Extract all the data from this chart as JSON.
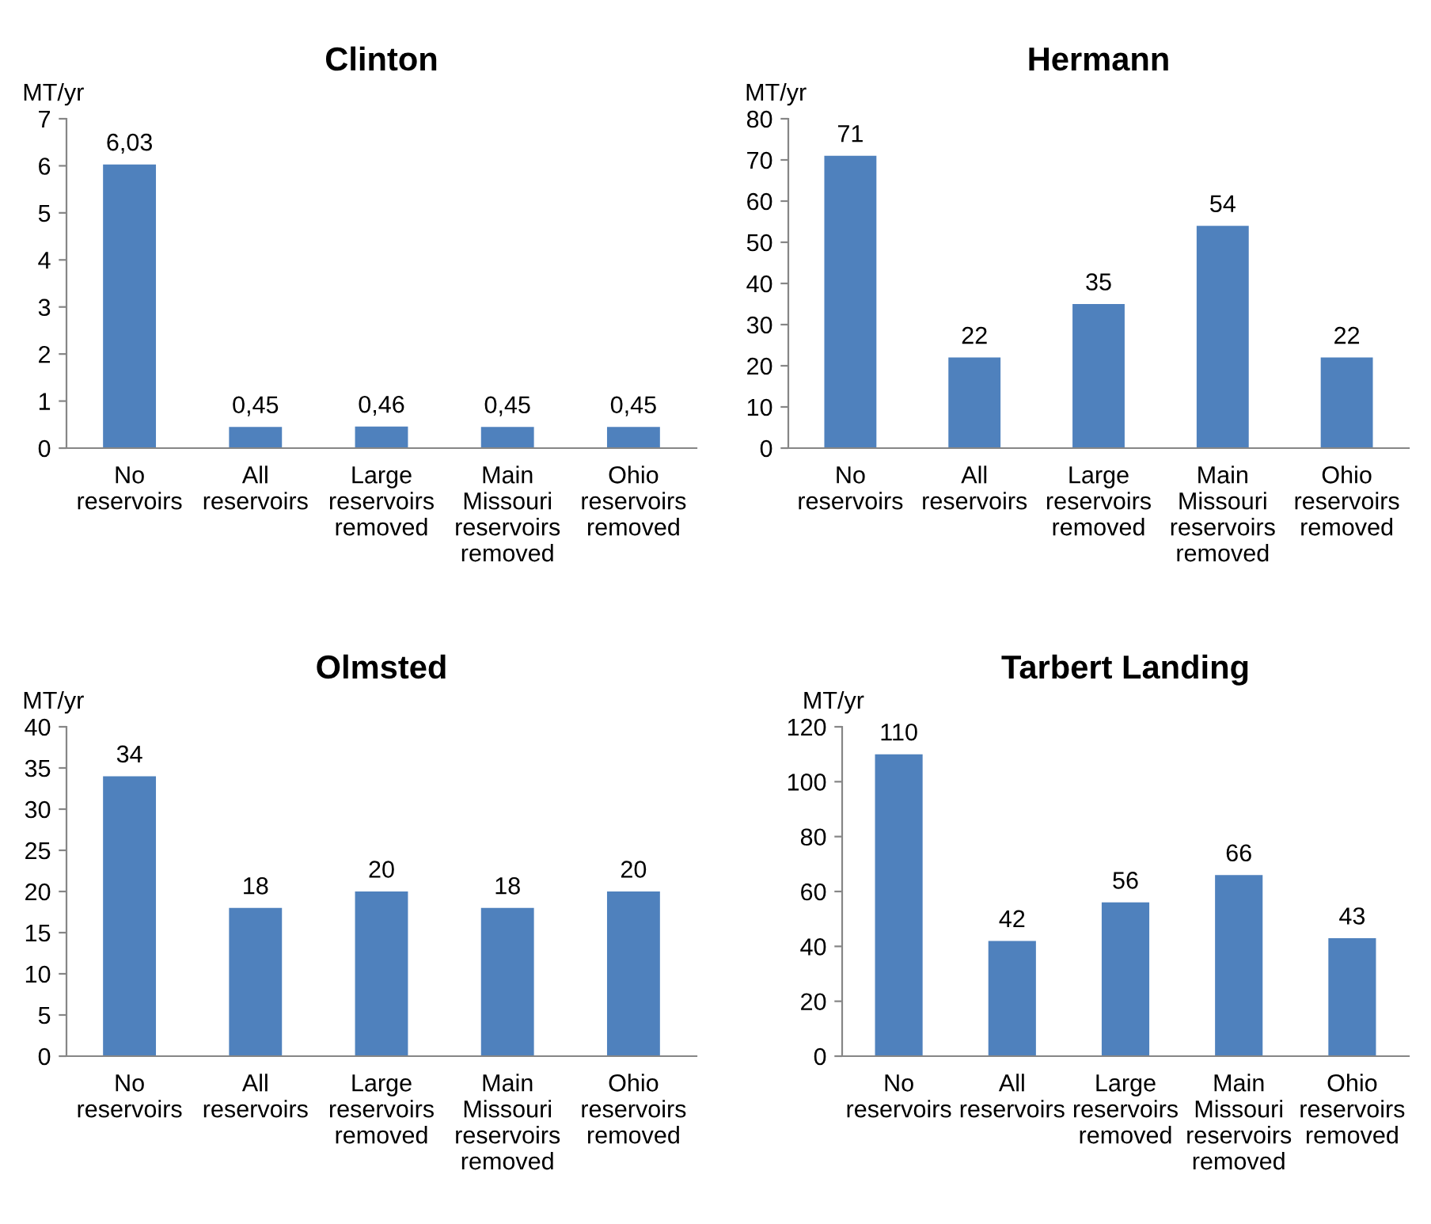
{
  "chart_data": [
    {
      "type": "bar",
      "title": "Clinton",
      "ylabel": "MT/yr",
      "categories": [
        "No reservoirs",
        "All reservoirs",
        "Large reservoirs removed",
        "Main Missouri reservoirs removed",
        "Ohio reservoirs removed"
      ],
      "values": [
        6.03,
        0.45,
        0.46,
        0.45,
        0.45
      ],
      "value_labels": [
        "6,03",
        "0,45",
        "0,46",
        "0,45",
        "0,45"
      ],
      "color": "#4f81bd",
      "ylim": [
        0,
        7
      ],
      "yticks": [
        0,
        1,
        2,
        3,
        4,
        5,
        6,
        7
      ],
      "grid": false,
      "legend": false
    },
    {
      "type": "bar",
      "title": "Hermann",
      "ylabel": "MT/yr",
      "categories": [
        "No reservoirs",
        "All reservoirs",
        "Large reservoirs removed",
        "Main Missouri reservoirs removed",
        "Ohio reservoirs removed"
      ],
      "values": [
        71,
        22,
        35,
        54,
        22
      ],
      "data_labels": true,
      "color": "#4f81bd",
      "ylim": [
        0,
        80
      ],
      "yticks": [
        0,
        10,
        20,
        30,
        40,
        50,
        60,
        70,
        80
      ],
      "grid": false,
      "legend": false
    },
    {
      "type": "bar",
      "title": "Olmsted",
      "ylabel": "MT/yr",
      "categories": [
        "No reservoirs",
        "All reservoirs",
        "Large reservoirs removed",
        "Main Missouri reservoirs removed",
        "Ohio reservoirs removed"
      ],
      "values": [
        34,
        18,
        20,
        18,
        20
      ],
      "data_labels": true,
      "color": "#4f81bd",
      "ylim": [
        0,
        40
      ],
      "yticks": [
        0,
        5,
        10,
        15,
        20,
        25,
        30,
        35,
        40
      ],
      "grid": false,
      "legend": false
    },
    {
      "type": "bar",
      "title": "Tarbert Landing",
      "ylabel": "MT/yr",
      "categories": [
        "No reservoirs",
        "All reservoirs",
        "Large reservoirs removed",
        "Main Missouri reservoirs removed",
        "Ohio reservoirs removed"
      ],
      "values": [
        110,
        42,
        56,
        66,
        43
      ],
      "data_labels": true,
      "color": "#4f81bd",
      "ylim": [
        0,
        120
      ],
      "yticks": [
        0,
        20,
        40,
        60,
        80,
        100,
        120
      ],
      "grid": false,
      "legend": false
    }
  ]
}
